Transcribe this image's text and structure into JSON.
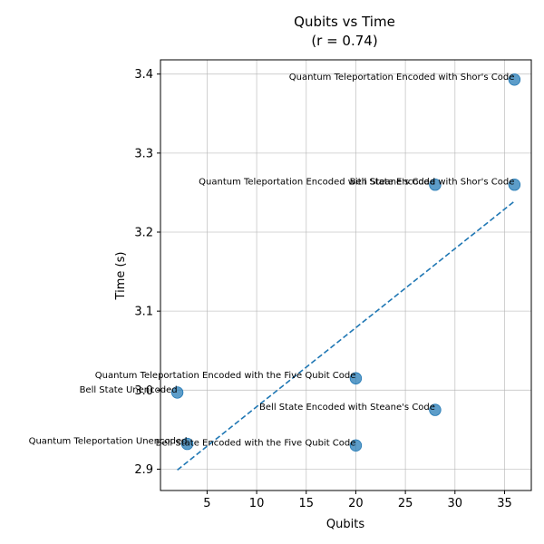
{
  "chart_data": {
    "type": "scatter",
    "title": "Qubits vs Time",
    "subtitle": "(r = 0.74)",
    "xlabel": "Qubits",
    "ylabel": "Time (s)",
    "xlim": [
      0.3,
      37.7
    ],
    "ylim": [
      2.873,
      3.418
    ],
    "x_ticks": [
      5,
      10,
      15,
      20,
      25,
      30,
      35
    ],
    "y_ticks": [
      2.9,
      3.0,
      3.1,
      3.2,
      3.3,
      3.4
    ],
    "x_tick_labels": [
      "5",
      "10",
      "15",
      "20",
      "25",
      "30",
      "35"
    ],
    "y_tick_labels": [
      "2.9",
      "3.0",
      "3.1",
      "3.2",
      "3.3",
      "3.4"
    ],
    "grid": true,
    "points": [
      {
        "label": "Quantum Teleportation Encoded with Shor's Code",
        "x": 36,
        "y": 3.393
      },
      {
        "label": "Quantum Teleportation Encoded with Steane's Code",
        "x": 28,
        "y": 3.26
      },
      {
        "label": "Bell State Encoded with Shor's Code",
        "x": 36,
        "y": 3.26
      },
      {
        "label": "Quantum Teleportation Encoded with the Five Qubit Code",
        "x": 20,
        "y": 3.015
      },
      {
        "label": "Bell State Unencoded",
        "x": 2,
        "y": 2.997
      },
      {
        "label": "Bell State Encoded with Steane's Code",
        "x": 28,
        "y": 2.975
      },
      {
        "label": "Quantum Teleportation Unencoded",
        "x": 3,
        "y": 2.932
      },
      {
        "label": "Bell State Encoded with the Five Qubit Code",
        "x": 20,
        "y": 2.93
      }
    ],
    "trendline": {
      "style": "dashed",
      "x": [
        2,
        36
      ],
      "y": [
        2.899,
        3.239
      ]
    },
    "colors": {
      "point_fill": "#1f77b4",
      "trendline": "#1f77b4"
    }
  }
}
